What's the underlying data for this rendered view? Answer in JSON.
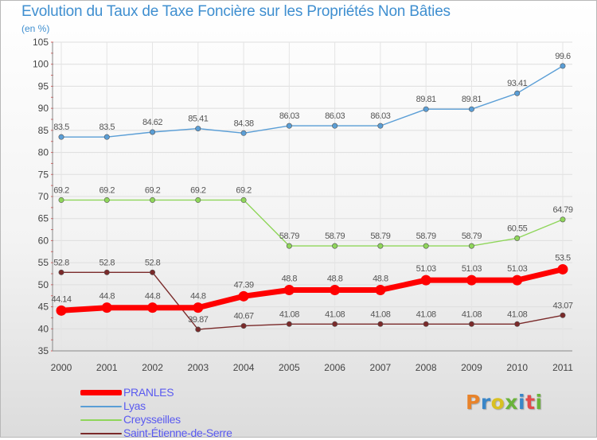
{
  "title": "Evolution du Taux de Taxe Foncière sur les Propriétés Non Bâties",
  "unit_label": "(en %)",
  "logo": {
    "text": "Proxiti",
    "colors": [
      "#e8832a",
      "#3a86c8",
      "#d9c022",
      "#6ab33a",
      "#3a86c8",
      "#e24b4b",
      "#6ab33a"
    ]
  },
  "chart_data": {
    "type": "line",
    "title": "Evolution du Taux de Taxe Foncière sur les Propriétés Non Bâties",
    "ylabel": "(en %)",
    "xlabel": "",
    "ylim": [
      35,
      105
    ],
    "yticks": [
      35,
      40,
      45,
      50,
      55,
      60,
      65,
      70,
      75,
      80,
      85,
      90,
      95,
      100,
      105
    ],
    "grid": true,
    "legend_position": "bottom-left",
    "categories": [
      "2000",
      "2001",
      "2002",
      "2003",
      "2004",
      "2005",
      "2006",
      "2007",
      "2008",
      "2009",
      "2010",
      "2011"
    ],
    "series": [
      {
        "name": "PRANLES",
        "color": "#ff0000",
        "emphasis": true,
        "values": [
          44.14,
          44.8,
          44.8,
          44.8,
          47.39,
          48.8,
          48.8,
          48.8,
          51.03,
          51.03,
          51.03,
          53.5
        ],
        "labels": [
          "44.14",
          "44.8",
          "44.8",
          "44.8",
          "47.39",
          "48.8",
          "48.8",
          "48.8",
          "51.03",
          "51.03",
          "51.03",
          "53.5"
        ]
      },
      {
        "name": "Lyas",
        "color": "#5a9ed6",
        "values": [
          83.5,
          83.5,
          84.62,
          85.41,
          84.38,
          86.03,
          86.03,
          86.03,
          89.81,
          89.81,
          93.41,
          99.6
        ],
        "labels": [
          "83.5",
          "83.5",
          "84.62",
          "85.41",
          "84.38",
          "86.03",
          "86.03",
          "86.03",
          "89.81",
          "89.81",
          "93.41",
          "99.6"
        ]
      },
      {
        "name": "Creysseilles",
        "color": "#8fd65a",
        "values": [
          69.2,
          69.2,
          69.2,
          69.2,
          69.2,
          58.79,
          58.79,
          58.79,
          58.79,
          58.79,
          60.55,
          64.79
        ],
        "labels": [
          "69.2",
          "69.2",
          "69.2",
          "69.2",
          "69.2",
          "58.79",
          "58.79",
          "58.79",
          "58.79",
          "58.79",
          "60.55",
          "64.79"
        ]
      },
      {
        "name": "Saint-Étienne-de-Serre",
        "color": "#7a2a2a",
        "values": [
          52.8,
          52.8,
          52.8,
          39.87,
          40.67,
          41.08,
          41.08,
          41.08,
          41.08,
          41.08,
          41.08,
          43.07
        ],
        "labels": [
          "52.8",
          "52.8",
          "52.8",
          "39.87",
          "40.67",
          "41.08",
          "41.08",
          "41.08",
          "41.08",
          "41.08",
          "41.08",
          "43.07"
        ]
      }
    ]
  }
}
